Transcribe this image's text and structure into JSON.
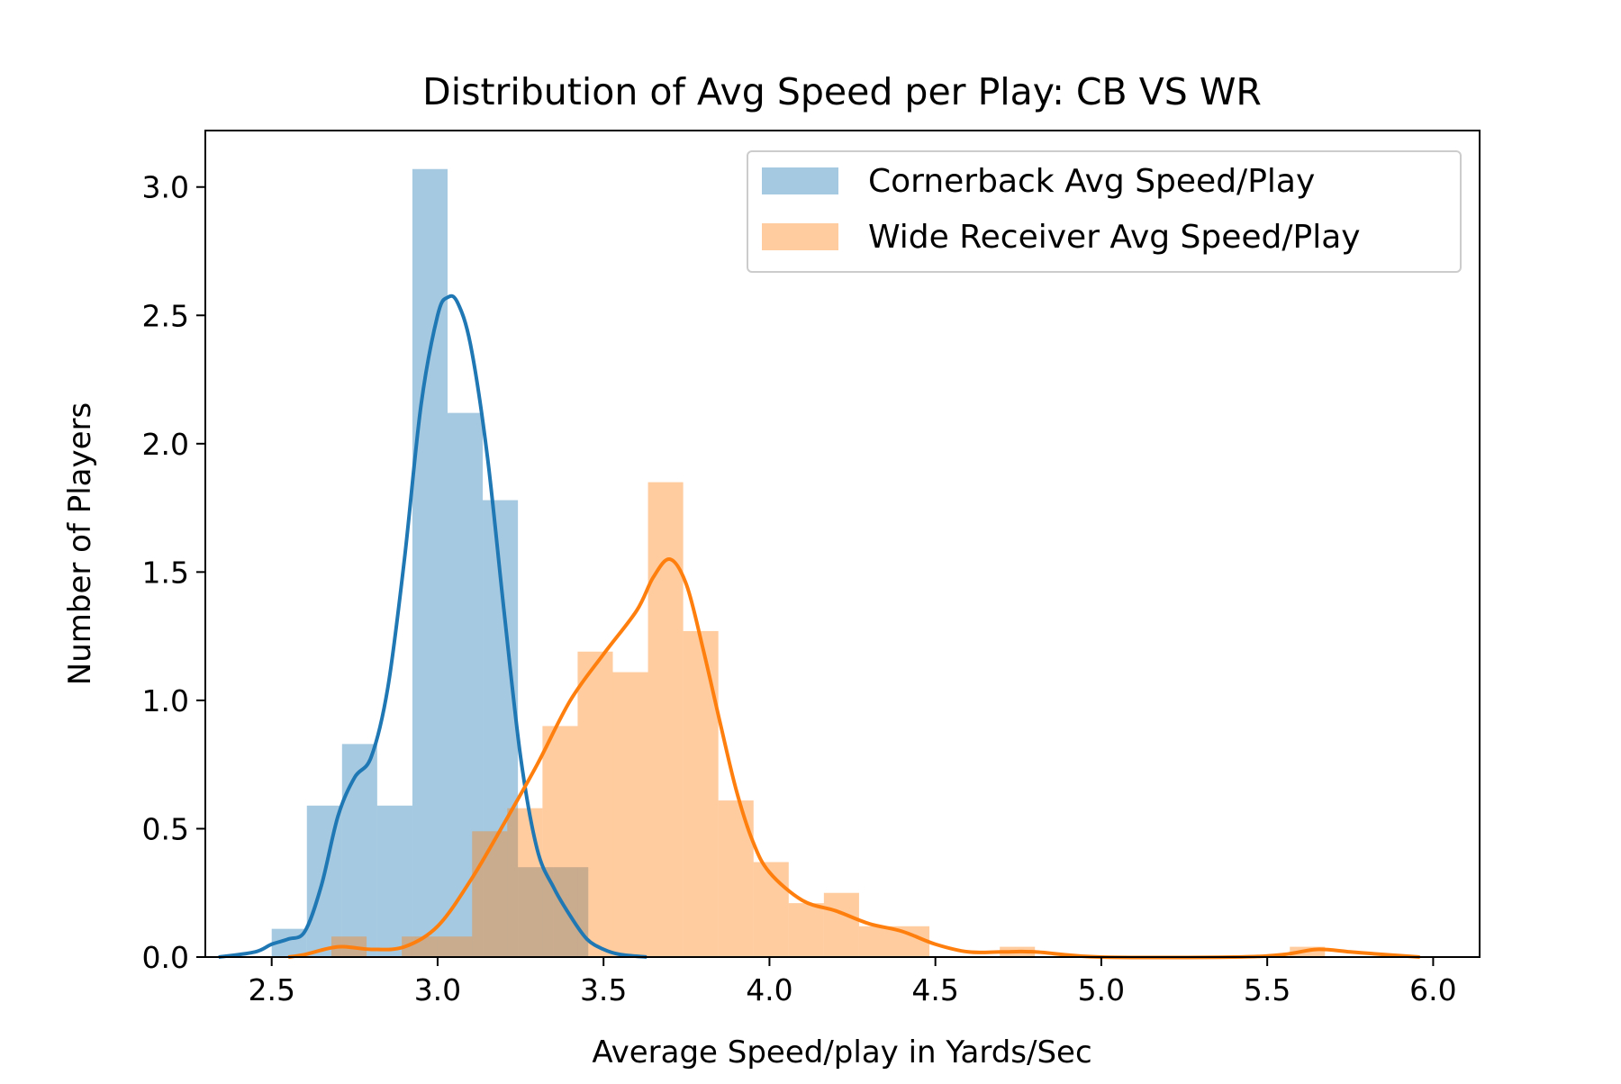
{
  "chart_data": {
    "type": "histogram",
    "title": "Distribution of Avg Speed per Play: CB VS WR",
    "xlabel": "Average Speed/play in Yards/Sec",
    "ylabel": "Number of Players",
    "xlim": [
      2.3,
      6.14
    ],
    "ylim": [
      0,
      3.22
    ],
    "xticks": [
      "2.5",
      "3.0",
      "3.5",
      "4.0",
      "4.5",
      "5.0",
      "5.5",
      "6.0"
    ],
    "yticks": [
      "0.0",
      "0.5",
      "1.0",
      "1.5",
      "2.0",
      "2.5",
      "3.0"
    ],
    "grid": false,
    "legend_position": "top-right",
    "series": [
      {
        "name": "Cornerback Avg Speed/Play",
        "color": "#1f77b4",
        "hist_alpha": 0.4,
        "bins": [
          [
            2.5,
            2.5,
            2.606,
            0.11
          ],
          [
            2.606,
            2.606,
            2.712,
            0.59
          ],
          [
            2.712,
            2.712,
            2.818,
            0.83
          ],
          [
            2.818,
            2.818,
            2.924,
            0.59
          ],
          [
            2.924,
            2.924,
            3.03,
            3.07
          ],
          [
            3.03,
            3.03,
            3.136,
            2.12
          ],
          [
            3.136,
            3.136,
            3.242,
            1.78
          ],
          [
            3.242,
            3.242,
            3.348,
            0.35
          ],
          [
            3.348,
            3.348,
            3.454,
            0.35
          ]
        ],
        "kde": [
          [
            2.34,
            0.0
          ],
          [
            2.45,
            0.02
          ],
          [
            2.5,
            0.05
          ],
          [
            2.55,
            0.07
          ],
          [
            2.6,
            0.1
          ],
          [
            2.65,
            0.28
          ],
          [
            2.7,
            0.55
          ],
          [
            2.75,
            0.7
          ],
          [
            2.8,
            0.78
          ],
          [
            2.85,
            1.05
          ],
          [
            2.9,
            1.55
          ],
          [
            2.95,
            2.15
          ],
          [
            3.0,
            2.5
          ],
          [
            3.03,
            2.57
          ],
          [
            3.06,
            2.55
          ],
          [
            3.1,
            2.38
          ],
          [
            3.15,
            1.95
          ],
          [
            3.2,
            1.35
          ],
          [
            3.25,
            0.78
          ],
          [
            3.3,
            0.42
          ],
          [
            3.35,
            0.27
          ],
          [
            3.4,
            0.16
          ],
          [
            3.45,
            0.07
          ],
          [
            3.5,
            0.03
          ],
          [
            3.55,
            0.01
          ],
          [
            3.63,
            0.0
          ]
        ]
      },
      {
        "name": "Wide Receiver Avg Speed/Play",
        "color": "#ff7f0e",
        "hist_alpha": 0.4,
        "bins": [
          [
            2.68,
            2.68,
            2.786,
            0.08
          ],
          [
            2.786,
            2.786,
            2.892,
            0.0
          ],
          [
            2.892,
            2.892,
            2.998,
            0.08
          ],
          [
            2.998,
            2.998,
            3.104,
            0.08
          ],
          [
            3.104,
            3.104,
            3.21,
            0.49
          ],
          [
            3.21,
            3.21,
            3.316,
            0.58
          ],
          [
            3.316,
            3.316,
            3.422,
            0.9
          ],
          [
            3.422,
            3.422,
            3.528,
            1.19
          ],
          [
            3.528,
            3.528,
            3.634,
            1.11
          ],
          [
            3.634,
            3.634,
            3.74,
            1.85
          ],
          [
            3.74,
            3.74,
            3.846,
            1.27
          ],
          [
            3.846,
            3.846,
            3.952,
            0.61
          ],
          [
            3.952,
            3.952,
            4.058,
            0.37
          ],
          [
            4.058,
            4.058,
            4.164,
            0.21
          ],
          [
            4.164,
            4.164,
            4.27,
            0.25
          ],
          [
            4.27,
            4.27,
            4.376,
            0.12
          ],
          [
            4.376,
            4.376,
            4.482,
            0.12
          ],
          [
            4.482,
            4.482,
            4.588,
            0.0
          ],
          [
            4.588,
            4.588,
            4.694,
            0.0
          ],
          [
            4.694,
            4.694,
            4.8,
            0.04
          ],
          [
            4.8,
            4.8,
            5.568,
            0.0
          ],
          [
            5.568,
            5.568,
            5.674,
            0.04
          ]
        ],
        "kde": [
          [
            2.55,
            0.0
          ],
          [
            2.6,
            0.01
          ],
          [
            2.7,
            0.04
          ],
          [
            2.8,
            0.03
          ],
          [
            2.9,
            0.04
          ],
          [
            3.0,
            0.12
          ],
          [
            3.1,
            0.3
          ],
          [
            3.2,
            0.52
          ],
          [
            3.3,
            0.75
          ],
          [
            3.4,
            1.0
          ],
          [
            3.5,
            1.18
          ],
          [
            3.6,
            1.35
          ],
          [
            3.65,
            1.48
          ],
          [
            3.7,
            1.55
          ],
          [
            3.75,
            1.45
          ],
          [
            3.8,
            1.2
          ],
          [
            3.85,
            0.92
          ],
          [
            3.9,
            0.65
          ],
          [
            3.95,
            0.45
          ],
          [
            4.0,
            0.33
          ],
          [
            4.1,
            0.22
          ],
          [
            4.2,
            0.18
          ],
          [
            4.3,
            0.13
          ],
          [
            4.4,
            0.1
          ],
          [
            4.5,
            0.05
          ],
          [
            4.6,
            0.02
          ],
          [
            4.7,
            0.02
          ],
          [
            4.8,
            0.02
          ],
          [
            5.0,
            0.0
          ],
          [
            5.4,
            0.0
          ],
          [
            5.55,
            0.01
          ],
          [
            5.65,
            0.03
          ],
          [
            5.75,
            0.02
          ],
          [
            5.85,
            0.01
          ],
          [
            5.96,
            0.0
          ]
        ]
      }
    ]
  }
}
